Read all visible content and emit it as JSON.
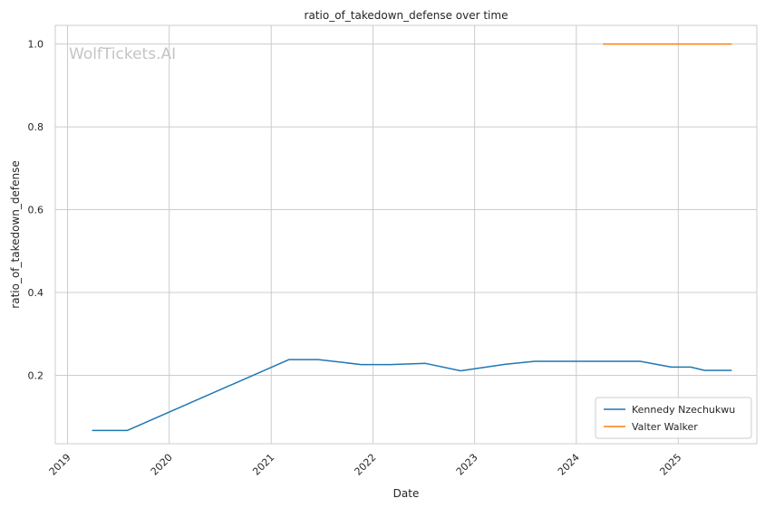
{
  "chart_data": {
    "type": "line",
    "title": "ratio_of_takedown_defense over time",
    "xlabel": "Date",
    "ylabel": "ratio_of_takedown_defense",
    "watermark": "WolfTickets.AI",
    "x_ticks": [
      "2019",
      "2020",
      "2021",
      "2022",
      "2023",
      "2024",
      "2025"
    ],
    "y_ticks": [
      "0.2",
      "0.4",
      "0.6",
      "0.8",
      "1.0"
    ],
    "xlim": [
      "2018-11-18",
      "2025-10-10"
    ],
    "ylim": [
      0.035,
      1.045
    ],
    "grid": true,
    "legend_position": "lower-right",
    "series": [
      {
        "name": "Kennedy Nzechukwu",
        "color": "#1f77b4",
        "points": [
          [
            "2019-03-30",
            0.067
          ],
          [
            "2019-08-03",
            0.067
          ],
          [
            "2021-03-06",
            0.238
          ],
          [
            "2021-06-19",
            0.238
          ],
          [
            "2021-11-20",
            0.226
          ],
          [
            "2022-03-05",
            0.226
          ],
          [
            "2022-07-09",
            0.229
          ],
          [
            "2022-11-12",
            0.211
          ],
          [
            "2023-04-22",
            0.227
          ],
          [
            "2023-08-05",
            0.234
          ],
          [
            "2024-08-17",
            0.234
          ],
          [
            "2024-12-07",
            0.22
          ],
          [
            "2025-02-15",
            0.22
          ],
          [
            "2025-04-05",
            0.212
          ],
          [
            "2025-07-12",
            0.212
          ]
        ]
      },
      {
        "name": "Valter Walker",
        "color": "#ff7f0e",
        "points": [
          [
            "2024-04-06",
            1.0
          ],
          [
            "2025-07-12",
            1.0
          ]
        ]
      }
    ]
  }
}
